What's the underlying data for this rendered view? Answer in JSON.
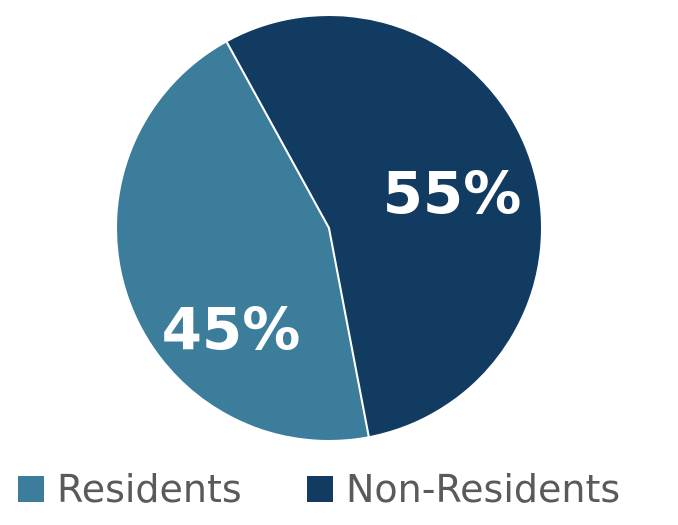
{
  "chart_data": {
    "type": "pie",
    "categories": [
      "Residents",
      "Non-Residents"
    ],
    "values": [
      45,
      55
    ],
    "value_labels": [
      "45%",
      "55%"
    ],
    "colors": [
      "#3c7d9c",
      "#123b62"
    ],
    "legend": {
      "position": "bottom",
      "entries": [
        {
          "label": "Residents",
          "color": "#3c7d9c"
        },
        {
          "label": "Non-Residents",
          "color": "#123b62"
        }
      ]
    }
  }
}
